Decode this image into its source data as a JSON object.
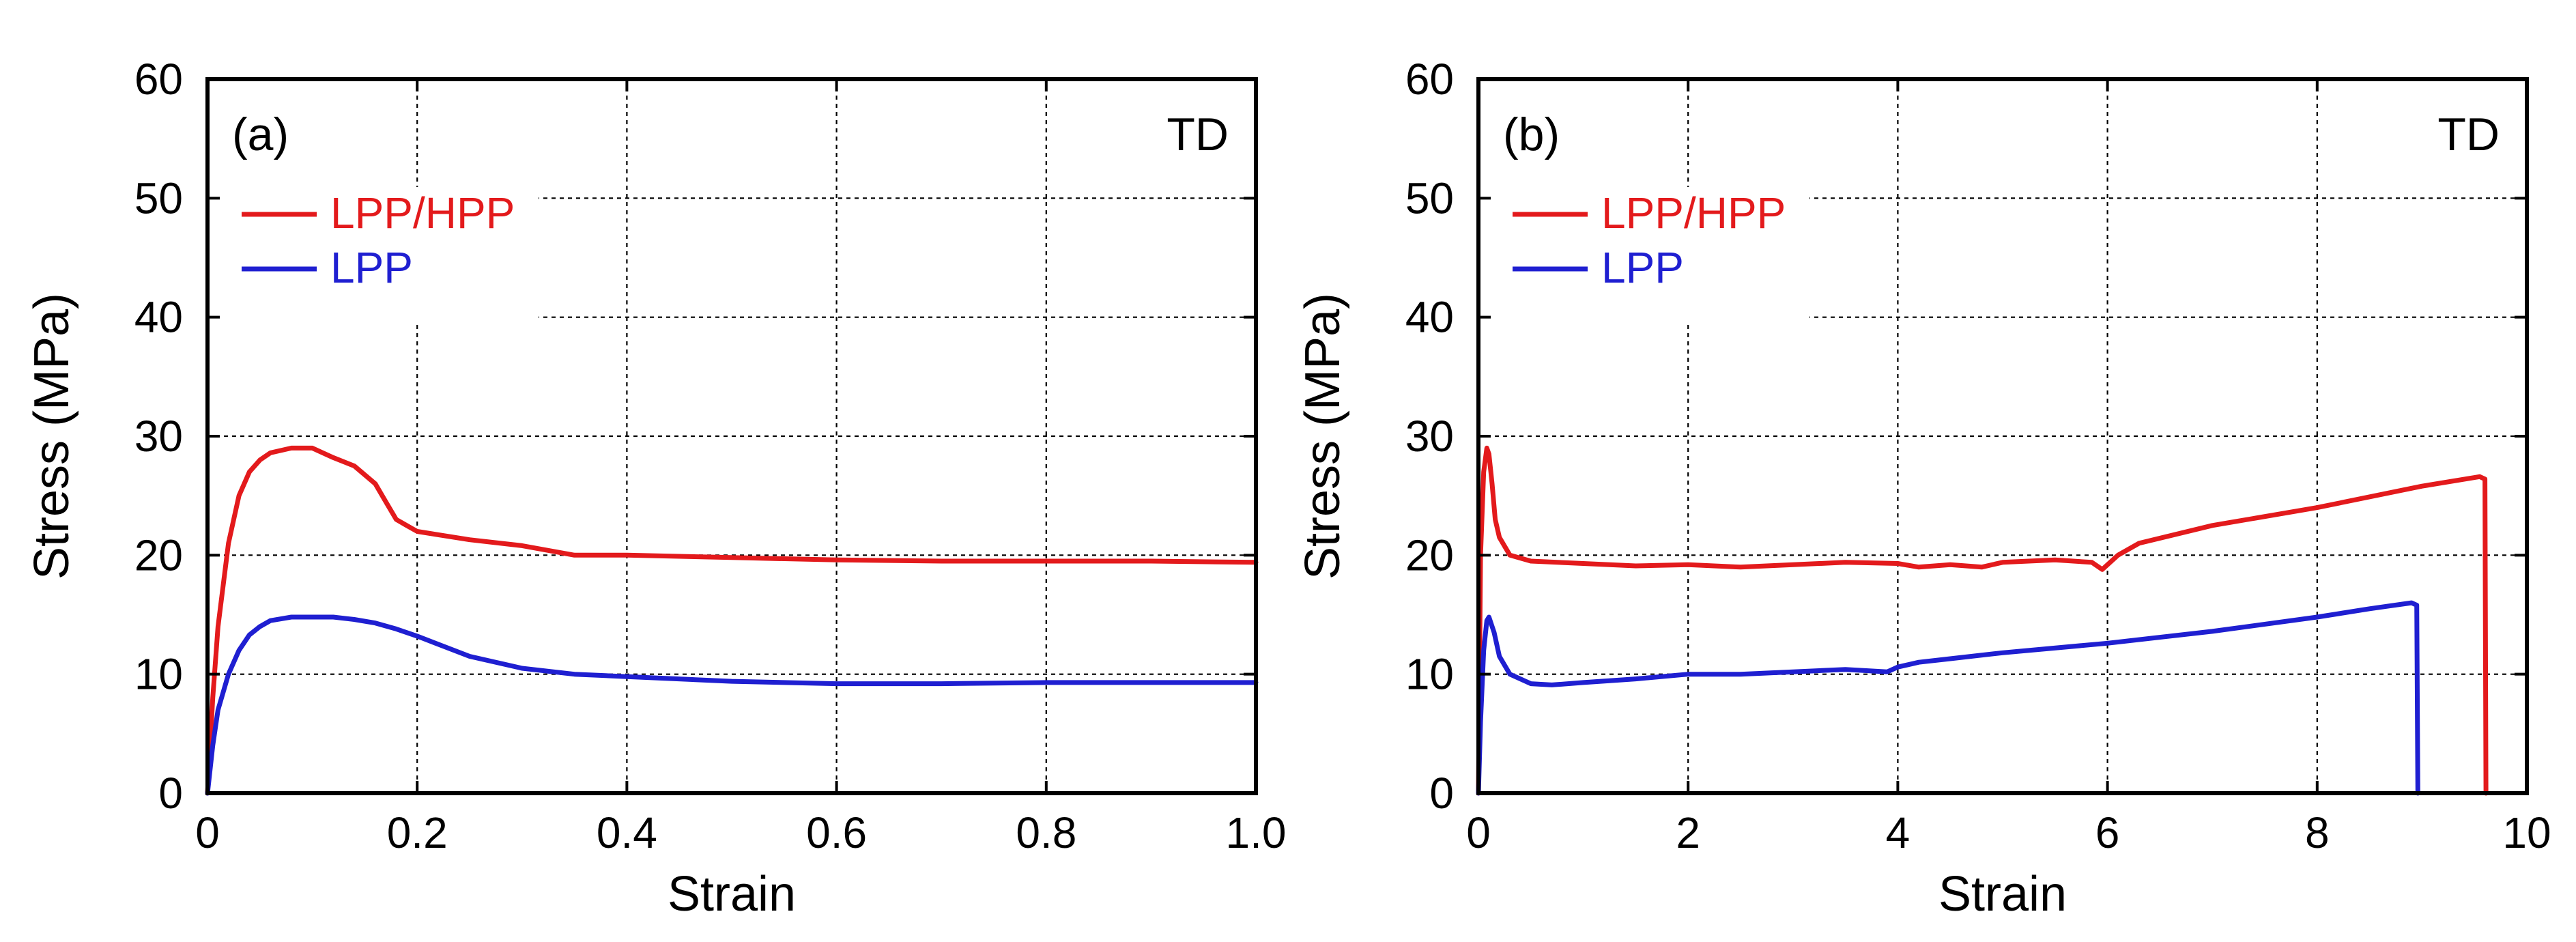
{
  "colors": {
    "red": "#e31a1c",
    "blue": "#1f1fd1",
    "axis": "#000000"
  },
  "chart_data": [
    {
      "type": "line",
      "panel_label": "(a)",
      "tag": "TD",
      "xlabel": "Strain",
      "ylabel": "Stress (MPa)",
      "xlim": [
        0,
        1.0
      ],
      "ylim": [
        0,
        60
      ],
      "x_ticks": [
        "0",
        "0.2",
        "0.4",
        "0.6",
        "0.8",
        "1.0"
      ],
      "x_tick_values": [
        0,
        0.2,
        0.4,
        0.6,
        0.8,
        1.0
      ],
      "y_ticks": [
        "0",
        "10",
        "20",
        "30",
        "40",
        "50",
        "60"
      ],
      "y_tick_values": [
        0,
        10,
        20,
        30,
        40,
        50,
        60
      ],
      "grid": true,
      "legend_position": "top-left",
      "series": [
        {
          "name": "LPP/HPP",
          "color": "#e31a1c",
          "x": [
            0,
            0.005,
            0.01,
            0.02,
            0.03,
            0.04,
            0.05,
            0.06,
            0.08,
            0.1,
            0.12,
            0.14,
            0.16,
            0.17,
            0.18,
            0.19,
            0.2,
            0.25,
            0.3,
            0.35,
            0.4,
            0.5,
            0.6,
            0.7,
            0.8,
            0.9,
            1.0
          ],
          "y": [
            0,
            8,
            14,
            21,
            25,
            27,
            28,
            28.6,
            29,
            29,
            28.2,
            27.5,
            26,
            24.5,
            23,
            22.5,
            22,
            21.3,
            20.8,
            20,
            20,
            19.8,
            19.6,
            19.5,
            19.5,
            19.5,
            19.4
          ]
        },
        {
          "name": "LPP",
          "color": "#1f1fd1",
          "x": [
            0,
            0.005,
            0.01,
            0.02,
            0.03,
            0.04,
            0.05,
            0.06,
            0.08,
            0.1,
            0.12,
            0.14,
            0.16,
            0.18,
            0.2,
            0.25,
            0.3,
            0.35,
            0.4,
            0.5,
            0.6,
            0.7,
            0.8,
            0.9,
            1.0
          ],
          "y": [
            0,
            4,
            7,
            10,
            12,
            13.3,
            14,
            14.5,
            14.8,
            14.8,
            14.8,
            14.6,
            14.3,
            13.8,
            13.2,
            11.5,
            10.5,
            10,
            9.8,
            9.4,
            9.2,
            9.2,
            9.3,
            9.3,
            9.3
          ]
        }
      ]
    },
    {
      "type": "line",
      "panel_label": "(b)",
      "tag": "TD",
      "xlabel": "Strain",
      "ylabel": "Stress (MPa)",
      "xlim": [
        0,
        10
      ],
      "ylim": [
        0,
        60
      ],
      "x_ticks": [
        "0",
        "2",
        "4",
        "6",
        "8",
        "10"
      ],
      "x_tick_values": [
        0,
        2,
        4,
        6,
        8,
        10
      ],
      "y_ticks": [
        "0",
        "10",
        "20",
        "30",
        "40",
        "50",
        "60"
      ],
      "y_tick_values": [
        0,
        10,
        20,
        30,
        40,
        50,
        60
      ],
      "grid": true,
      "legend_position": "top-left",
      "series": [
        {
          "name": "LPP/HPP",
          "color": "#e31a1c",
          "x": [
            0,
            0.02,
            0.05,
            0.08,
            0.1,
            0.13,
            0.16,
            0.2,
            0.3,
            0.5,
            1,
            1.5,
            2,
            2.5,
            3,
            3.5,
            4,
            4.2,
            4.5,
            4.8,
            5,
            5.5,
            5.85,
            5.95,
            6.1,
            6.3,
            7,
            8,
            9,
            9.55,
            9.6,
            9.61
          ],
          "y": [
            0,
            20,
            27,
            29,
            28.5,
            26,
            23,
            21.5,
            20,
            19.5,
            19.3,
            19.1,
            19.2,
            19,
            19.2,
            19.4,
            19.3,
            19,
            19.2,
            19,
            19.4,
            19.6,
            19.4,
            18.8,
            20,
            21,
            22.5,
            24,
            25.8,
            26.6,
            26.4,
            0
          ]
        },
        {
          "name": "LPP",
          "color": "#1f1fd1",
          "x": [
            0,
            0.02,
            0.05,
            0.08,
            0.1,
            0.15,
            0.2,
            0.3,
            0.5,
            0.7,
            1,
            1.5,
            2,
            2.5,
            3,
            3.5,
            3.9,
            4,
            4.2,
            4.5,
            5,
            6,
            7,
            8,
            8.5,
            8.9,
            8.95,
            8.96
          ],
          "y": [
            0,
            6,
            12,
            14.5,
            14.8,
            13.5,
            11.5,
            10,
            9.2,
            9.1,
            9.3,
            9.6,
            10,
            10,
            10.2,
            10.4,
            10.2,
            10.6,
            11,
            11.3,
            11.8,
            12.6,
            13.6,
            14.8,
            15.5,
            16,
            15.8,
            0
          ]
        }
      ]
    }
  ]
}
